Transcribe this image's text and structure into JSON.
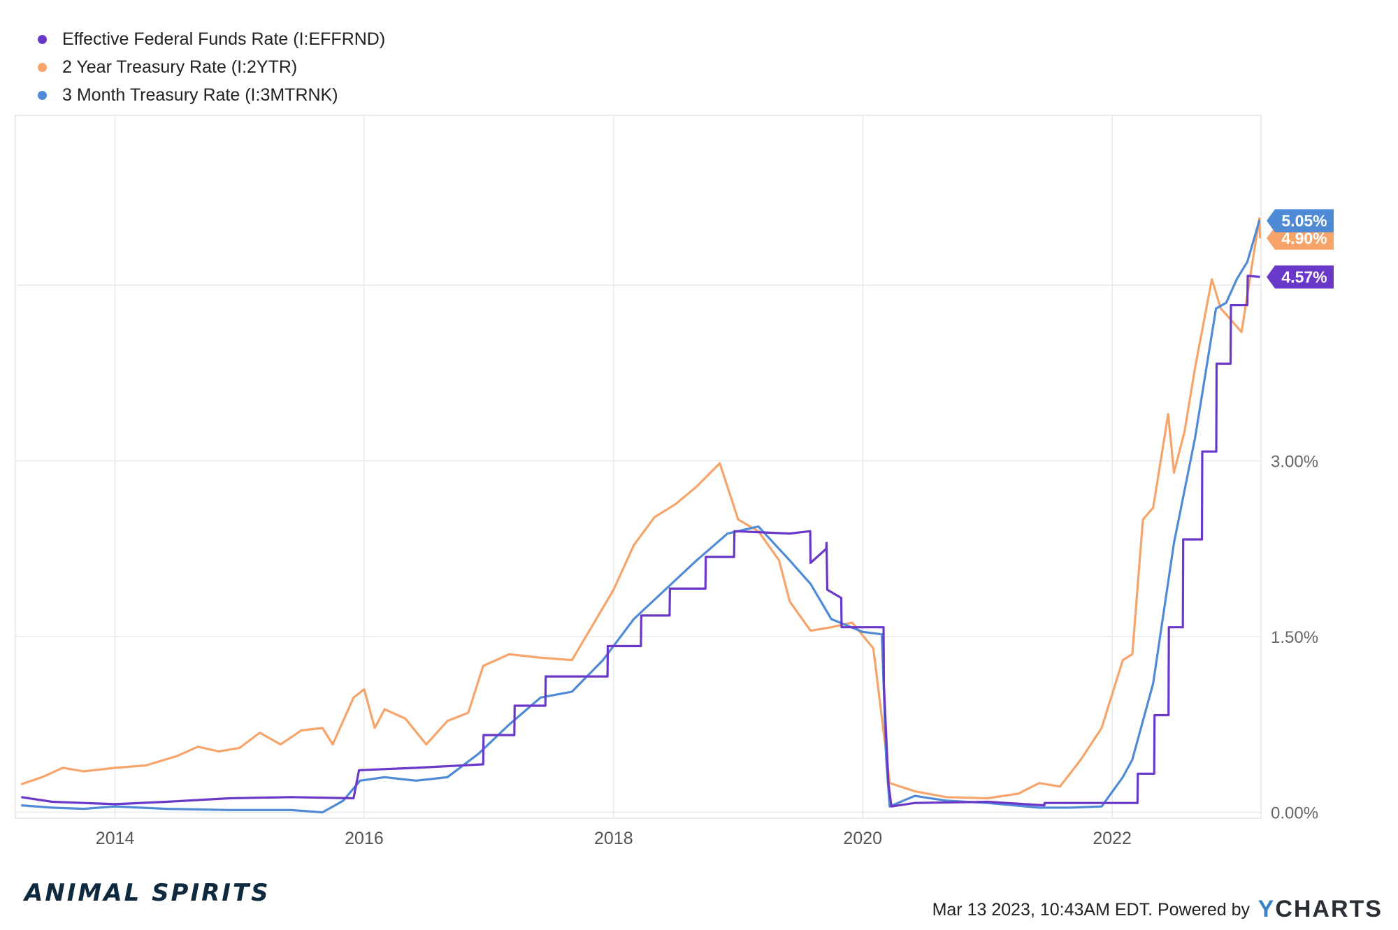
{
  "chart_data": {
    "type": "line",
    "series": [
      {
        "name": "Effective Federal Funds Rate (I:EFFRND)",
        "color": "#6a38c8",
        "last_label": "4.57%",
        "points": [
          [
            "2013-04-01",
            0.13
          ],
          [
            "2013-07-01",
            0.09
          ],
          [
            "2013-10-01",
            0.08
          ],
          [
            "2014-01-01",
            0.07
          ],
          [
            "2014-06-01",
            0.09
          ],
          [
            "2014-12-01",
            0.12
          ],
          [
            "2015-06-01",
            0.13
          ],
          [
            "2015-12-01",
            0.12
          ],
          [
            "2015-12-17",
            0.36
          ],
          [
            "2016-06-01",
            0.38
          ],
          [
            "2016-12-15",
            0.41
          ],
          [
            "2016-12-16",
            0.66
          ],
          [
            "2017-03-16",
            0.66
          ],
          [
            "2017-03-17",
            0.91
          ],
          [
            "2017-06-15",
            0.91
          ],
          [
            "2017-06-16",
            1.16
          ],
          [
            "2017-12-14",
            1.16
          ],
          [
            "2017-12-15",
            1.42
          ],
          [
            "2018-03-22",
            1.42
          ],
          [
            "2018-03-23",
            1.68
          ],
          [
            "2018-06-14",
            1.68
          ],
          [
            "2018-06-15",
            1.91
          ],
          [
            "2018-09-27",
            1.91
          ],
          [
            "2018-09-28",
            2.18
          ],
          [
            "2018-12-20",
            2.18
          ],
          [
            "2018-12-21",
            2.4
          ],
          [
            "2019-06-01",
            2.38
          ],
          [
            "2019-07-31",
            2.4
          ],
          [
            "2019-08-01",
            2.13
          ],
          [
            "2019-09-16",
            2.25
          ],
          [
            "2019-09-17",
            2.3
          ],
          [
            "2019-09-19",
            1.9
          ],
          [
            "2019-10-30",
            1.83
          ],
          [
            "2019-10-31",
            1.58
          ],
          [
            "2020-03-02",
            1.58
          ],
          [
            "2020-03-03",
            1.09
          ],
          [
            "2020-03-16",
            0.25
          ],
          [
            "2020-03-25",
            0.05
          ],
          [
            "2020-06-01",
            0.08
          ],
          [
            "2021-01-01",
            0.09
          ],
          [
            "2021-06-16",
            0.06
          ],
          [
            "2021-06-17",
            0.08
          ],
          [
            "2022-03-16",
            0.08
          ],
          [
            "2022-03-17",
            0.33
          ],
          [
            "2022-05-04",
            0.33
          ],
          [
            "2022-05-05",
            0.83
          ],
          [
            "2022-06-15",
            0.83
          ],
          [
            "2022-06-16",
            1.58
          ],
          [
            "2022-07-27",
            1.58
          ],
          [
            "2022-07-28",
            2.33
          ],
          [
            "2022-09-21",
            2.33
          ],
          [
            "2022-09-22",
            3.08
          ],
          [
            "2022-11-02",
            3.08
          ],
          [
            "2022-11-03",
            3.83
          ],
          [
            "2022-12-14",
            3.83
          ],
          [
            "2022-12-15",
            4.33
          ],
          [
            "2023-02-01",
            4.33
          ],
          [
            "2023-02-02",
            4.58
          ],
          [
            "2023-03-10",
            4.57
          ]
        ]
      },
      {
        "name": "2 Year Treasury Rate (I:2YTR)",
        "color": "#f7a46b",
        "last_label": "4.90%",
        "points": [
          [
            "2013-04-01",
            0.24
          ],
          [
            "2013-06-01",
            0.3
          ],
          [
            "2013-08-01",
            0.38
          ],
          [
            "2013-10-01",
            0.35
          ],
          [
            "2014-01-01",
            0.38
          ],
          [
            "2014-04-01",
            0.4
          ],
          [
            "2014-07-01",
            0.48
          ],
          [
            "2014-09-01",
            0.56
          ],
          [
            "2014-11-01",
            0.52
          ],
          [
            "2015-01-01",
            0.55
          ],
          [
            "2015-03-01",
            0.68
          ],
          [
            "2015-05-01",
            0.58
          ],
          [
            "2015-07-01",
            0.7
          ],
          [
            "2015-09-01",
            0.72
          ],
          [
            "2015-10-01",
            0.58
          ],
          [
            "2015-12-01",
            0.98
          ],
          [
            "2016-01-01",
            1.05
          ],
          [
            "2016-02-01",
            0.72
          ],
          [
            "2016-03-01",
            0.88
          ],
          [
            "2016-05-01",
            0.8
          ],
          [
            "2016-07-01",
            0.58
          ],
          [
            "2016-09-01",
            0.78
          ],
          [
            "2016-11-01",
            0.85
          ],
          [
            "2016-12-15",
            1.25
          ],
          [
            "2017-03-01",
            1.35
          ],
          [
            "2017-06-01",
            1.32
          ],
          [
            "2017-09-01",
            1.3
          ],
          [
            "2017-11-01",
            1.6
          ],
          [
            "2018-01-01",
            1.9
          ],
          [
            "2018-03-01",
            2.28
          ],
          [
            "2018-05-01",
            2.52
          ],
          [
            "2018-07-01",
            2.63
          ],
          [
            "2018-09-01",
            2.78
          ],
          [
            "2018-11-08",
            2.98
          ],
          [
            "2019-01-01",
            2.5
          ],
          [
            "2019-03-01",
            2.4
          ],
          [
            "2019-05-01",
            2.15
          ],
          [
            "2019-06-01",
            1.8
          ],
          [
            "2019-08-01",
            1.55
          ],
          [
            "2019-10-01",
            1.58
          ],
          [
            "2019-12-01",
            1.62
          ],
          [
            "2020-02-01",
            1.4
          ],
          [
            "2020-03-10",
            0.5
          ],
          [
            "2020-03-20",
            0.25
          ],
          [
            "2020-06-01",
            0.18
          ],
          [
            "2020-09-01",
            0.13
          ],
          [
            "2021-01-01",
            0.12
          ],
          [
            "2021-04-01",
            0.16
          ],
          [
            "2021-06-01",
            0.25
          ],
          [
            "2021-08-01",
            0.22
          ],
          [
            "2021-10-01",
            0.45
          ],
          [
            "2021-12-01",
            0.72
          ],
          [
            "2022-02-01",
            1.3
          ],
          [
            "2022-03-01",
            1.35
          ],
          [
            "2022-04-01",
            2.5
          ],
          [
            "2022-05-01",
            2.6
          ],
          [
            "2022-06-14",
            3.4
          ],
          [
            "2022-07-01",
            2.9
          ],
          [
            "2022-08-01",
            3.25
          ],
          [
            "2022-09-01",
            3.8
          ],
          [
            "2022-10-20",
            4.55
          ],
          [
            "2022-11-15",
            4.3
          ],
          [
            "2022-12-01",
            4.25
          ],
          [
            "2023-01-15",
            4.1
          ],
          [
            "2023-03-08",
            5.07
          ],
          [
            "2023-03-10",
            4.9
          ]
        ]
      },
      {
        "name": "3 Month Treasury Rate (I:3MTRNK)",
        "color": "#4f8ad6",
        "last_label": "5.05%",
        "points": [
          [
            "2013-04-01",
            0.06
          ],
          [
            "2013-07-01",
            0.04
          ],
          [
            "2013-10-01",
            0.03
          ],
          [
            "2014-01-01",
            0.05
          ],
          [
            "2014-06-01",
            0.03
          ],
          [
            "2014-12-01",
            0.02
          ],
          [
            "2015-06-01",
            0.02
          ],
          [
            "2015-09-01",
            0.0
          ],
          [
            "2015-11-01",
            0.1
          ],
          [
            "2015-12-20",
            0.27
          ],
          [
            "2016-03-01",
            0.3
          ],
          [
            "2016-06-01",
            0.27
          ],
          [
            "2016-09-01",
            0.3
          ],
          [
            "2016-12-01",
            0.5
          ],
          [
            "2017-03-01",
            0.75
          ],
          [
            "2017-06-01",
            0.98
          ],
          [
            "2017-09-01",
            1.03
          ],
          [
            "2017-12-01",
            1.3
          ],
          [
            "2018-03-01",
            1.65
          ],
          [
            "2018-06-01",
            1.9
          ],
          [
            "2018-09-01",
            2.15
          ],
          [
            "2018-12-01",
            2.38
          ],
          [
            "2019-03-01",
            2.44
          ],
          [
            "2019-06-01",
            2.15
          ],
          [
            "2019-08-01",
            1.95
          ],
          [
            "2019-10-01",
            1.65
          ],
          [
            "2020-01-01",
            1.54
          ],
          [
            "2020-02-26",
            1.52
          ],
          [
            "2020-03-10",
            0.45
          ],
          [
            "2020-03-20",
            0.05
          ],
          [
            "2020-06-01",
            0.14
          ],
          [
            "2020-09-01",
            0.1
          ],
          [
            "2021-01-01",
            0.08
          ],
          [
            "2021-06-01",
            0.04
          ],
          [
            "2021-09-01",
            0.04
          ],
          [
            "2021-12-01",
            0.05
          ],
          [
            "2022-02-01",
            0.3
          ],
          [
            "2022-03-01",
            0.45
          ],
          [
            "2022-05-01",
            1.1
          ],
          [
            "2022-07-01",
            2.3
          ],
          [
            "2022-09-01",
            3.2
          ],
          [
            "2022-11-01",
            4.3
          ],
          [
            "2022-12-01",
            4.35
          ],
          [
            "2023-01-01",
            4.55
          ],
          [
            "2023-02-01",
            4.7
          ],
          [
            "2023-03-08",
            5.05
          ],
          [
            "2023-03-10",
            5.05
          ]
        ]
      }
    ],
    "x_tick_labels": [
      "2014",
      "2016",
      "2018",
      "2020",
      "2022"
    ],
    "y_tick_labels": [
      "0.00%",
      "1.50%",
      "3.00%"
    ],
    "y_tick_values": [
      0,
      1.5,
      3.0
    ],
    "xlim": [
      "2013-03-15",
      "2023-03-13"
    ],
    "ylim": [
      -0.05,
      5.95
    ],
    "grid": true,
    "legend_placement": "top-left"
  },
  "footer": {
    "brand": "ANIMAL SPIRITS",
    "timestamp": "Mar 13 2023, 10:43AM EDT.  Powered by",
    "logo_y": "Y",
    "logo_rest": "CHARTS"
  }
}
